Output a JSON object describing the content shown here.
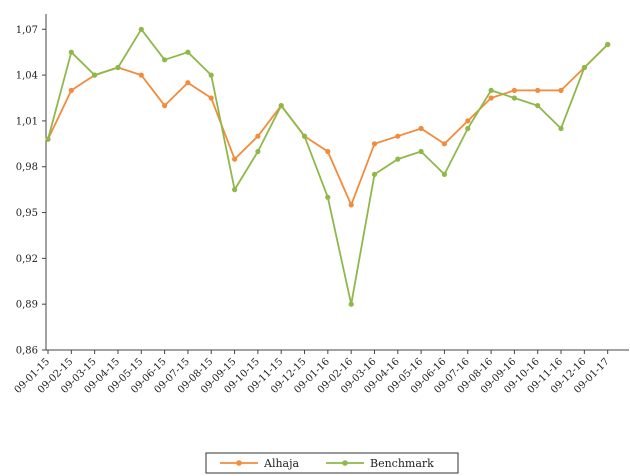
{
  "chart_data": {
    "type": "line",
    "title": "",
    "xlabel": "",
    "ylabel": "",
    "ylim": [
      0.86,
      1.08
    ],
    "yticks": [
      "0,86",
      "0,89",
      "0,92",
      "0,95",
      "0,98",
      "1,01",
      "1,04",
      "1,07"
    ],
    "categories": [
      "09-01-15",
      "09-02-15",
      "09-03-15",
      "09-04-15",
      "09-05-15",
      "09-06-15",
      "09-07-15",
      "09-08-15",
      "09-09-15",
      "09-10-15",
      "09-11-15",
      "09-12-15",
      "09-01-16",
      "09-02-16",
      "09-03-16",
      "09-04-16",
      "09-05-16",
      "09-06-16",
      "09-07-16",
      "09-08-16",
      "09-09-16",
      "09-10-16",
      "09-11-16",
      "09-12-16",
      "09-01-17"
    ],
    "grid": false,
    "legend_position": "bottom",
    "series": [
      {
        "name": "Alhaja",
        "color": "#F28C3C",
        "values": [
          0.998,
          1.03,
          1.04,
          1.045,
          1.04,
          1.02,
          1.035,
          1.025,
          0.985,
          1.0,
          1.02,
          1.0,
          0.99,
          0.955,
          0.995,
          1.0,
          1.005,
          0.995,
          1.01,
          1.025,
          1.03,
          1.03,
          1.03,
          1.045,
          1.06
        ]
      },
      {
        "name": "Benchmark",
        "color": "#8FB84A",
        "values": [
          0.998,
          1.055,
          1.04,
          1.045,
          1.07,
          1.05,
          1.055,
          1.04,
          0.965,
          0.99,
          1.02,
          1.0,
          0.96,
          0.89,
          0.975,
          0.985,
          0.99,
          0.975,
          1.005,
          1.03,
          1.025,
          1.02,
          1.005,
          1.045,
          1.06
        ]
      }
    ]
  }
}
